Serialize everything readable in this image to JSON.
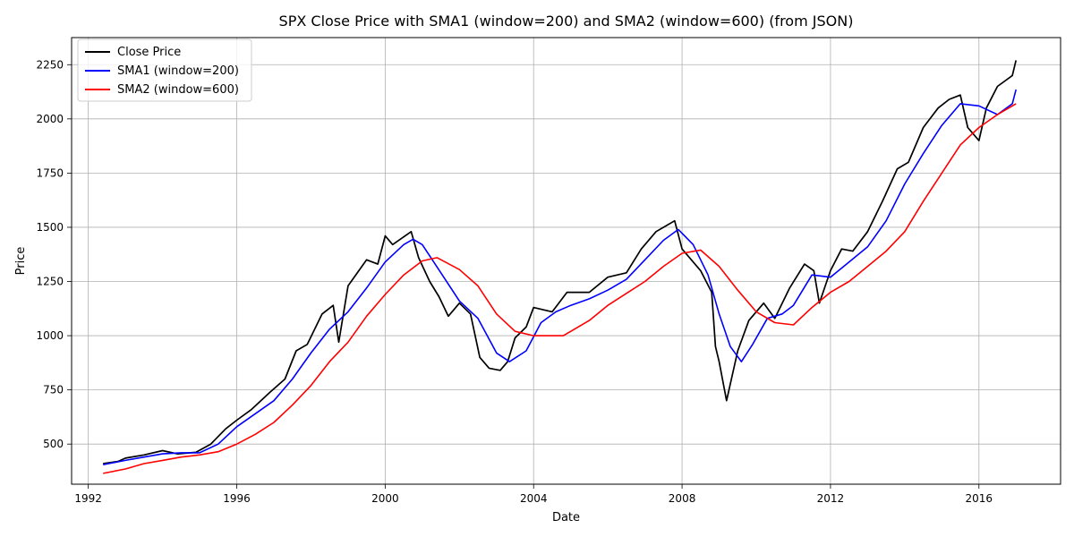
{
  "chart_data": {
    "type": "line",
    "title": "SPX Close Price with SMA1 (window=200) and SMA2 (window=600) (from JSON)",
    "xlabel": "Date",
    "ylabel": "Price",
    "xlim": [
      1991.55,
      2018.2
    ],
    "ylim": [
      315,
      2375
    ],
    "xticks": [
      1992,
      1996,
      2000,
      2004,
      2008,
      2012,
      2016
    ],
    "xtick_labels": [
      "1992",
      "1996",
      "2000",
      "2004",
      "2008",
      "2012",
      "2016"
    ],
    "yticks": [
      500,
      750,
      1000,
      1250,
      1500,
      1750,
      2000,
      2250
    ],
    "ytick_labels": [
      "500",
      "750",
      "1000",
      "1250",
      "1500",
      "1750",
      "2000",
      "2250"
    ],
    "grid": true,
    "legend_position": "top-left",
    "series": [
      {
        "name": "Close Price",
        "color": "#000000",
        "points": [
          [
            1992.4,
            410
          ],
          [
            1992.8,
            420
          ],
          [
            1993.0,
            435
          ],
          [
            1993.5,
            450
          ],
          [
            1994.0,
            470
          ],
          [
            1994.4,
            455
          ],
          [
            1994.9,
            462
          ],
          [
            1995.3,
            500
          ],
          [
            1995.7,
            570
          ],
          [
            1996.0,
            610
          ],
          [
            1996.4,
            660
          ],
          [
            1996.9,
            740
          ],
          [
            1997.3,
            800
          ],
          [
            1997.6,
            930
          ],
          [
            1997.9,
            960
          ],
          [
            1998.3,
            1100
          ],
          [
            1998.6,
            1140
          ],
          [
            1998.75,
            970
          ],
          [
            1999.0,
            1230
          ],
          [
            1999.5,
            1350
          ],
          [
            1999.8,
            1330
          ],
          [
            2000.0,
            1460
          ],
          [
            2000.2,
            1420
          ],
          [
            2000.7,
            1480
          ],
          [
            2000.9,
            1360
          ],
          [
            2001.2,
            1250
          ],
          [
            2001.45,
            1180
          ],
          [
            2001.7,
            1090
          ],
          [
            2002.0,
            1150
          ],
          [
            2002.3,
            1100
          ],
          [
            2002.55,
            900
          ],
          [
            2002.8,
            850
          ],
          [
            2003.1,
            840
          ],
          [
            2003.3,
            880
          ],
          [
            2003.5,
            990
          ],
          [
            2003.8,
            1040
          ],
          [
            2004.0,
            1130
          ],
          [
            2004.5,
            1110
          ],
          [
            2004.9,
            1200
          ],
          [
            2005.5,
            1200
          ],
          [
            2006.0,
            1270
          ],
          [
            2006.5,
            1290
          ],
          [
            2006.9,
            1400
          ],
          [
            2007.3,
            1480
          ],
          [
            2007.8,
            1530
          ],
          [
            2008.0,
            1400
          ],
          [
            2008.5,
            1300
          ],
          [
            2008.8,
            1200
          ],
          [
            2008.9,
            950
          ],
          [
            2009.0,
            880
          ],
          [
            2009.2,
            700
          ],
          [
            2009.5,
            930
          ],
          [
            2009.8,
            1070
          ],
          [
            2010.2,
            1150
          ],
          [
            2010.5,
            1080
          ],
          [
            2010.9,
            1220
          ],
          [
            2011.3,
            1330
          ],
          [
            2011.55,
            1300
          ],
          [
            2011.7,
            1150
          ],
          [
            2012.0,
            1300
          ],
          [
            2012.3,
            1400
          ],
          [
            2012.6,
            1390
          ],
          [
            2013.0,
            1480
          ],
          [
            2013.4,
            1620
          ],
          [
            2013.8,
            1770
          ],
          [
            2014.1,
            1800
          ],
          [
            2014.5,
            1960
          ],
          [
            2014.9,
            2050
          ],
          [
            2015.2,
            2090
          ],
          [
            2015.5,
            2110
          ],
          [
            2015.7,
            1960
          ],
          [
            2016.0,
            1900
          ],
          [
            2016.2,
            2050
          ],
          [
            2016.5,
            2150
          ],
          [
            2016.9,
            2200
          ],
          [
            2017.0,
            2270
          ]
        ]
      },
      {
        "name": "SMA1 (window=200)",
        "color": "#0000ff",
        "points": [
          [
            1992.4,
            405
          ],
          [
            1993.0,
            425
          ],
          [
            1993.5,
            440
          ],
          [
            1994.0,
            455
          ],
          [
            1994.5,
            460
          ],
          [
            1995.0,
            460
          ],
          [
            1995.5,
            500
          ],
          [
            1996.0,
            580
          ],
          [
            1996.5,
            640
          ],
          [
            1997.0,
            700
          ],
          [
            1997.5,
            800
          ],
          [
            1998.0,
            920
          ],
          [
            1998.5,
            1030
          ],
          [
            1999.0,
            1110
          ],
          [
            1999.5,
            1220
          ],
          [
            2000.0,
            1340
          ],
          [
            2000.5,
            1420
          ],
          [
            2000.75,
            1445
          ],
          [
            2001.0,
            1420
          ],
          [
            2001.5,
            1290
          ],
          [
            2002.0,
            1160
          ],
          [
            2002.5,
            1080
          ],
          [
            2003.0,
            920
          ],
          [
            2003.35,
            880
          ],
          [
            2003.8,
            930
          ],
          [
            2004.2,
            1060
          ],
          [
            2004.6,
            1110
          ],
          [
            2005.0,
            1140
          ],
          [
            2005.5,
            1170
          ],
          [
            2006.0,
            1210
          ],
          [
            2006.5,
            1260
          ],
          [
            2007.0,
            1350
          ],
          [
            2007.5,
            1440
          ],
          [
            2007.9,
            1490
          ],
          [
            2008.3,
            1420
          ],
          [
            2008.7,
            1280
          ],
          [
            2009.0,
            1100
          ],
          [
            2009.3,
            950
          ],
          [
            2009.6,
            880
          ],
          [
            2009.9,
            960
          ],
          [
            2010.3,
            1080
          ],
          [
            2010.7,
            1100
          ],
          [
            2011.0,
            1140
          ],
          [
            2011.5,
            1280
          ],
          [
            2012.0,
            1270
          ],
          [
            2012.5,
            1340
          ],
          [
            2013.0,
            1410
          ],
          [
            2013.5,
            1530
          ],
          [
            2014.0,
            1700
          ],
          [
            2014.5,
            1840
          ],
          [
            2015.0,
            1970
          ],
          [
            2015.5,
            2070
          ],
          [
            2016.0,
            2060
          ],
          [
            2016.5,
            2020
          ],
          [
            2016.9,
            2070
          ],
          [
            2017.0,
            2135
          ]
        ]
      },
      {
        "name": "SMA2 (window=600)",
        "color": "#ff0000",
        "points": [
          [
            1992.4,
            365
          ],
          [
            1993.0,
            385
          ],
          [
            1993.5,
            410
          ],
          [
            1994.0,
            425
          ],
          [
            1994.5,
            440
          ],
          [
            1995.0,
            450
          ],
          [
            1995.5,
            465
          ],
          [
            1996.0,
            500
          ],
          [
            1996.5,
            545
          ],
          [
            1997.0,
            600
          ],
          [
            1997.5,
            680
          ],
          [
            1998.0,
            770
          ],
          [
            1998.5,
            880
          ],
          [
            1999.0,
            970
          ],
          [
            1999.5,
            1090
          ],
          [
            2000.0,
            1190
          ],
          [
            2000.5,
            1280
          ],
          [
            2001.0,
            1345
          ],
          [
            2001.4,
            1360
          ],
          [
            2002.0,
            1305
          ],
          [
            2002.5,
            1230
          ],
          [
            2003.0,
            1100
          ],
          [
            2003.5,
            1020
          ],
          [
            2004.0,
            1000
          ],
          [
            2004.8,
            1000
          ],
          [
            2005.5,
            1070
          ],
          [
            2006.0,
            1140
          ],
          [
            2006.5,
            1195
          ],
          [
            2007.0,
            1250
          ],
          [
            2007.5,
            1320
          ],
          [
            2008.0,
            1380
          ],
          [
            2008.5,
            1395
          ],
          [
            2009.0,
            1320
          ],
          [
            2009.5,
            1210
          ],
          [
            2010.0,
            1110
          ],
          [
            2010.5,
            1060
          ],
          [
            2011.0,
            1050
          ],
          [
            2011.5,
            1130
          ],
          [
            2012.0,
            1200
          ],
          [
            2012.5,
            1250
          ],
          [
            2013.0,
            1320
          ],
          [
            2013.5,
            1390
          ],
          [
            2014.0,
            1480
          ],
          [
            2014.5,
            1620
          ],
          [
            2015.0,
            1750
          ],
          [
            2015.5,
            1880
          ],
          [
            2016.0,
            1960
          ],
          [
            2016.5,
            2020
          ],
          [
            2017.0,
            2070
          ]
        ]
      }
    ]
  }
}
